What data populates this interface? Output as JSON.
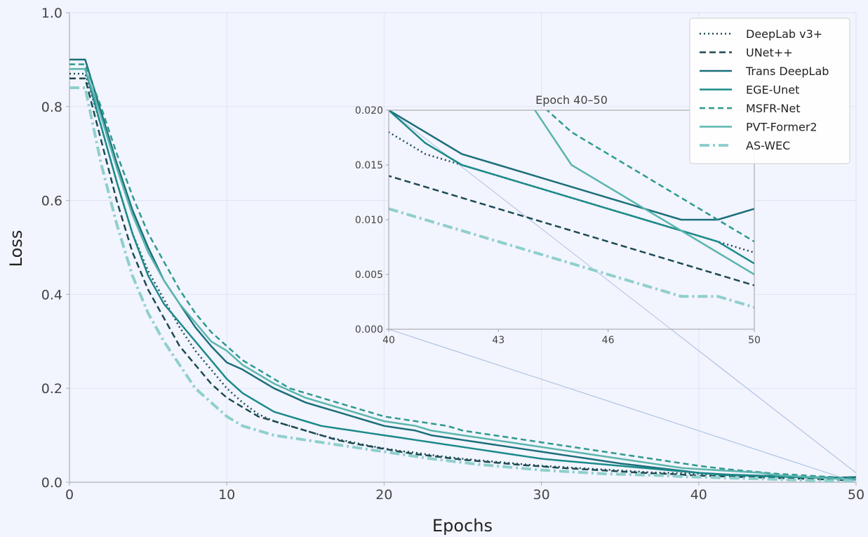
{
  "chart_data": {
    "type": "line",
    "title": "",
    "xlabel": "Epochs",
    "ylabel": "Loss",
    "xlim": [
      0,
      50
    ],
    "ylim": [
      0,
      1.0
    ],
    "xticks": [
      "0",
      "10",
      "20",
      "30",
      "40",
      "50"
    ],
    "yticks": [
      "0.0",
      "0.2",
      "0.4",
      "0.6",
      "0.8",
      "1.0"
    ],
    "grid": true,
    "legend_position": "top-right",
    "x": [
      0,
      1,
      2,
      3,
      4,
      5,
      6,
      7,
      8,
      9,
      10,
      11,
      12,
      13,
      14,
      15,
      16,
      17,
      18,
      19,
      20,
      21,
      22,
      23,
      24,
      25,
      26,
      27,
      28,
      29,
      30,
      31,
      32,
      33,
      34,
      35,
      36,
      37,
      38,
      39,
      40,
      41,
      42,
      43,
      44,
      45,
      46,
      47,
      48,
      49,
      50
    ],
    "series": [
      {
        "name": "DeepLab v3+",
        "color": "#1c4a52",
        "dash": "2,4",
        "width": 2.5,
        "values": [
          0.87,
          0.87,
          0.76,
          0.64,
          0.53,
          0.45,
          0.39,
          0.33,
          0.28,
          0.24,
          0.2,
          0.17,
          0.145,
          0.13,
          0.12,
          0.11,
          0.1,
          0.092,
          0.085,
          0.078,
          0.072,
          0.067,
          0.063,
          0.058,
          0.054,
          0.05,
          0.047,
          0.044,
          0.041,
          0.038,
          0.035,
          0.033,
          0.031,
          0.029,
          0.027,
          0.025,
          0.023,
          0.021,
          0.02,
          0.019,
          0.018,
          0.016,
          0.015,
          0.014,
          0.013,
          0.012,
          0.011,
          0.01,
          0.009,
          0.008,
          0.007
        ]
      },
      {
        "name": "UNet++",
        "color": "#1c4a52",
        "dash": "9,5",
        "width": 2.5,
        "values": [
          0.86,
          0.86,
          0.73,
          0.6,
          0.49,
          0.41,
          0.35,
          0.29,
          0.25,
          0.21,
          0.18,
          0.16,
          0.14,
          0.13,
          0.12,
          0.11,
          0.1,
          0.09,
          0.083,
          0.077,
          0.071,
          0.065,
          0.06,
          0.056,
          0.052,
          0.048,
          0.045,
          0.042,
          0.039,
          0.036,
          0.034,
          0.031,
          0.029,
          0.027,
          0.025,
          0.023,
          0.021,
          0.019,
          0.018,
          0.016,
          0.014,
          0.013,
          0.012,
          0.011,
          0.01,
          0.009,
          0.008,
          0.007,
          0.006,
          0.005,
          0.004
        ]
      },
      {
        "name": "Trans DeepLab",
        "color": "#1b6f7a",
        "dash": "",
        "width": 2.5,
        "values": [
          0.9,
          0.9,
          0.79,
          0.68,
          0.58,
          0.5,
          0.43,
          0.38,
          0.33,
          0.29,
          0.255,
          0.24,
          0.22,
          0.2,
          0.185,
          0.17,
          0.16,
          0.15,
          0.14,
          0.13,
          0.12,
          0.115,
          0.11,
          0.1,
          0.095,
          0.09,
          0.085,
          0.08,
          0.075,
          0.07,
          0.065,
          0.06,
          0.055,
          0.05,
          0.045,
          0.04,
          0.036,
          0.032,
          0.028,
          0.024,
          0.02,
          0.018,
          0.016,
          0.015,
          0.014,
          0.013,
          0.012,
          0.011,
          0.01,
          0.01,
          0.011
        ]
      },
      {
        "name": "EGE-Unet",
        "color": "#1a8a8a",
        "dash": "",
        "width": 2.5,
        "values": [
          0.88,
          0.88,
          0.76,
          0.64,
          0.53,
          0.44,
          0.38,
          0.34,
          0.3,
          0.26,
          0.22,
          0.19,
          0.17,
          0.15,
          0.14,
          0.13,
          0.12,
          0.115,
          0.11,
          0.105,
          0.1,
          0.095,
          0.09,
          0.085,
          0.08,
          0.075,
          0.07,
          0.065,
          0.06,
          0.055,
          0.05,
          0.047,
          0.044,
          0.041,
          0.038,
          0.035,
          0.032,
          0.029,
          0.026,
          0.023,
          0.02,
          0.017,
          0.015,
          0.014,
          0.013,
          0.012,
          0.011,
          0.01,
          0.009,
          0.008,
          0.006
        ]
      },
      {
        "name": "MSFR-Net",
        "color": "#2e9a8e",
        "dash": "8,5",
        "width": 2.5,
        "values": [
          0.89,
          0.89,
          0.8,
          0.7,
          0.61,
          0.53,
          0.47,
          0.41,
          0.36,
          0.32,
          0.29,
          0.26,
          0.24,
          0.22,
          0.2,
          0.19,
          0.18,
          0.17,
          0.16,
          0.15,
          0.14,
          0.135,
          0.13,
          0.125,
          0.12,
          0.11,
          0.105,
          0.1,
          0.095,
          0.09,
          0.085,
          0.08,
          0.075,
          0.07,
          0.065,
          0.06,
          0.055,
          0.05,
          0.045,
          0.04,
          0.035,
          0.031,
          0.027,
          0.024,
          0.021,
          0.018,
          0.016,
          0.014,
          0.012,
          0.01,
          0.008
        ]
      },
      {
        "name": "PVT-Former2",
        "color": "#5ab5ad",
        "dash": "",
        "width": 2.5,
        "values": [
          0.88,
          0.88,
          0.78,
          0.67,
          0.57,
          0.49,
          0.43,
          0.38,
          0.34,
          0.3,
          0.28,
          0.25,
          0.23,
          0.21,
          0.195,
          0.18,
          0.17,
          0.16,
          0.15,
          0.14,
          0.13,
          0.125,
          0.12,
          0.11,
          0.105,
          0.1,
          0.095,
          0.09,
          0.085,
          0.08,
          0.075,
          0.07,
          0.065,
          0.06,
          0.055,
          0.05,
          0.045,
          0.04,
          0.035,
          0.03,
          0.028,
          0.026,
          0.024,
          0.022,
          0.02,
          0.015,
          0.013,
          0.011,
          0.009,
          0.007,
          0.005
        ]
      },
      {
        "name": "AS-WEC",
        "color": "#8ecfcc",
        "dash": "14,5,3,5",
        "width": 4,
        "values": [
          0.84,
          0.84,
          0.68,
          0.55,
          0.44,
          0.36,
          0.3,
          0.25,
          0.2,
          0.17,
          0.14,
          0.12,
          0.11,
          0.1,
          0.095,
          0.09,
          0.085,
          0.08,
          0.075,
          0.07,
          0.065,
          0.06,
          0.055,
          0.05,
          0.046,
          0.042,
          0.038,
          0.035,
          0.032,
          0.029,
          0.026,
          0.024,
          0.022,
          0.02,
          0.018,
          0.017,
          0.016,
          0.015,
          0.014,
          0.012,
          0.011,
          0.01,
          0.009,
          0.008,
          0.007,
          0.006,
          0.005,
          0.004,
          0.003,
          0.003,
          0.002
        ]
      }
    ],
    "inset": {
      "title": "Epoch 40–50",
      "xlim": [
        40,
        50
      ],
      "ylim": [
        0,
        0.02
      ],
      "xticks": [
        "40",
        "43",
        "46",
        "50"
      ],
      "yticks": [
        "0.000",
        "0.005",
        "0.010",
        "0.015",
        "0.020"
      ]
    }
  }
}
